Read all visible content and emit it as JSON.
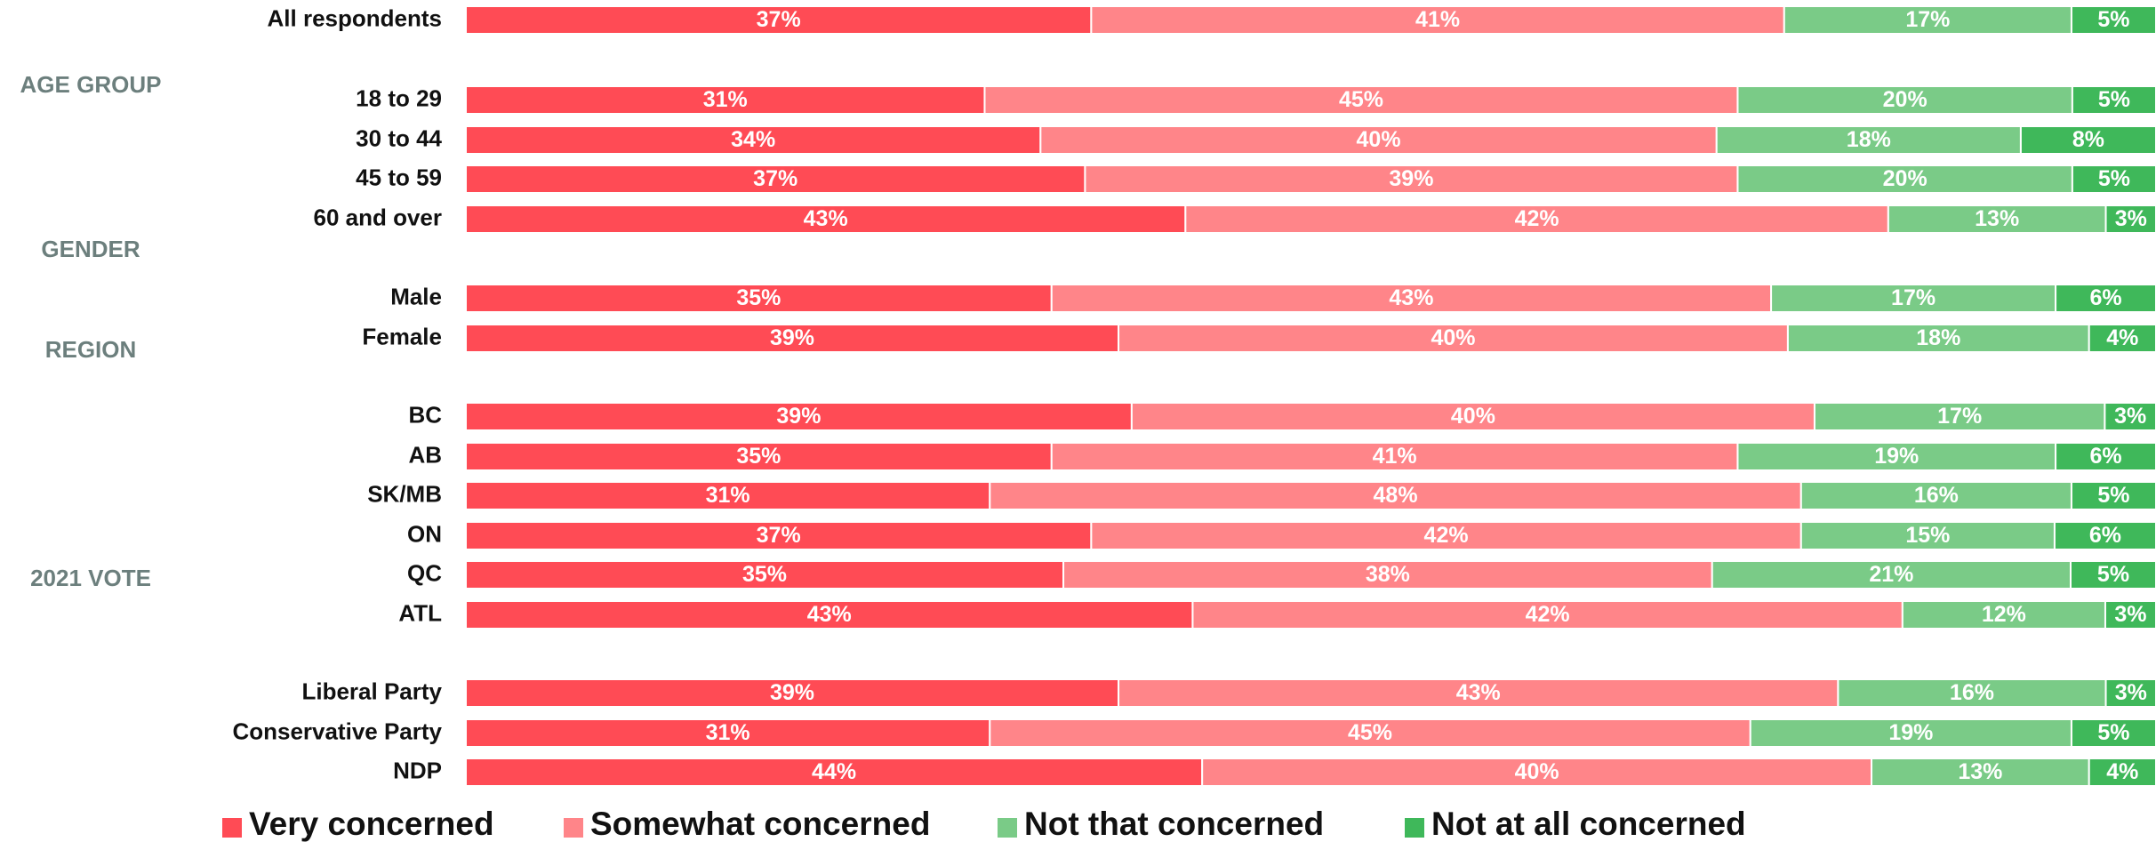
{
  "chart_data": {
    "type": "bar",
    "orientation": "horizontal",
    "stacked": true,
    "legend_position": "bottom",
    "grid": false,
    "series": [
      {
        "name": "Very concerned",
        "color": "#ff4b55"
      },
      {
        "name": "Somewhat concerned",
        "color": "#ff8589"
      },
      {
        "name": "Not that concerned",
        "color": "#7acb87"
      },
      {
        "name": "Not at all concerned",
        "color": "#3fb85a"
      }
    ],
    "groups": [
      {
        "label": "AGE GROUP"
      },
      {
        "label": "GENDER"
      },
      {
        "label": "REGION"
      },
      {
        "label": "2021 VOTE"
      }
    ],
    "rows": [
      {
        "label": "All respondents",
        "values": [
          37,
          41,
          17,
          5
        ]
      },
      {
        "label": "18 to 29",
        "values": [
          31,
          45,
          20,
          5
        ]
      },
      {
        "label": "30 to 44",
        "values": [
          34,
          40,
          18,
          8
        ]
      },
      {
        "label": "45 to 59",
        "values": [
          37,
          39,
          20,
          5
        ]
      },
      {
        "label": "60 and over",
        "values": [
          43,
          42,
          13,
          3
        ]
      },
      {
        "label": "Male",
        "values": [
          35,
          43,
          17,
          6
        ]
      },
      {
        "label": "Female",
        "values": [
          39,
          40,
          18,
          4
        ]
      },
      {
        "label": "BC",
        "values": [
          39,
          40,
          17,
          3
        ]
      },
      {
        "label": "AB",
        "values": [
          35,
          41,
          19,
          6
        ]
      },
      {
        "label": "SK/MB",
        "values": [
          31,
          48,
          16,
          5
        ]
      },
      {
        "label": "ON",
        "values": [
          37,
          42,
          15,
          6
        ]
      },
      {
        "label": "QC",
        "values": [
          35,
          38,
          21,
          5
        ]
      },
      {
        "label": "ATL",
        "values": [
          43,
          42,
          12,
          3
        ]
      },
      {
        "label": "Liberal Party",
        "values": [
          39,
          43,
          16,
          3
        ]
      },
      {
        "label": "Conservative Party",
        "values": [
          31,
          45,
          19,
          5
        ]
      },
      {
        "label": "NDP",
        "values": [
          44,
          40,
          13,
          4
        ]
      }
    ]
  }
}
